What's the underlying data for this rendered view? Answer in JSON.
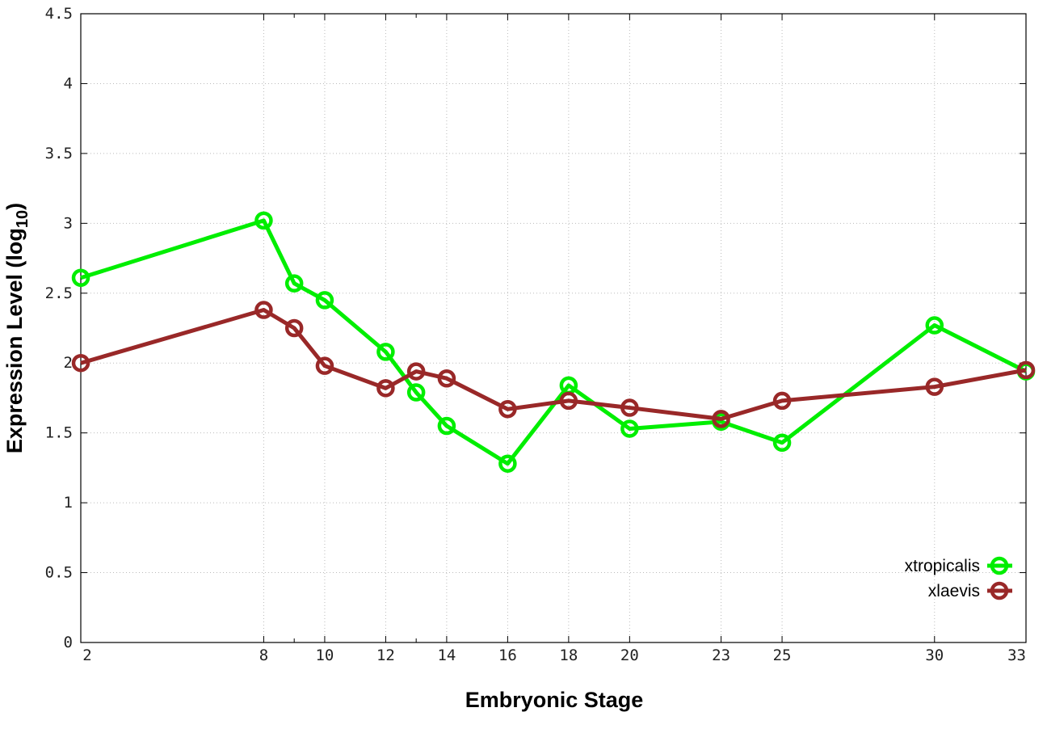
{
  "chart_data": {
    "type": "line",
    "xlabel": "Embryonic Stage",
    "ylabel_main": "Expression Level (log",
    "ylabel_sub": "10",
    "ylabel_close": ")",
    "x_ticks": [
      "2",
      "8",
      "10",
      "12",
      "14",
      "16",
      "18",
      "20",
      "23",
      "25",
      "30",
      "33"
    ],
    "x_tick_values": [
      2,
      8,
      10,
      12,
      14,
      16,
      18,
      20,
      23,
      25,
      30,
      33
    ],
    "x_intermediate_ticks": [
      9,
      13
    ],
    "xlim": [
      2,
      33
    ],
    "y_ticks": [
      "0",
      "0.5",
      "1",
      "1.5",
      "2",
      "2.5",
      "3",
      "3.5",
      "4",
      "4.5"
    ],
    "ylim": [
      0,
      4.5
    ],
    "grid": true,
    "legend_position": "bottom-right",
    "x": [
      2,
      8,
      9,
      10,
      12,
      13,
      14,
      16,
      18,
      20,
      23,
      25,
      30,
      33
    ],
    "series": [
      {
        "name": "xtropicalis",
        "color": "#00ee00",
        "values": [
          2.61,
          3.02,
          2.57,
          2.45,
          2.08,
          1.79,
          1.55,
          1.28,
          1.84,
          1.53,
          1.58,
          1.43,
          2.27,
          1.94
        ]
      },
      {
        "name": "xlaevis",
        "color": "#992828",
        "values": [
          2.0,
          2.38,
          2.25,
          1.98,
          1.82,
          1.94,
          1.89,
          1.67,
          1.73,
          1.68,
          1.6,
          1.73,
          1.83,
          1.95
        ]
      }
    ]
  }
}
